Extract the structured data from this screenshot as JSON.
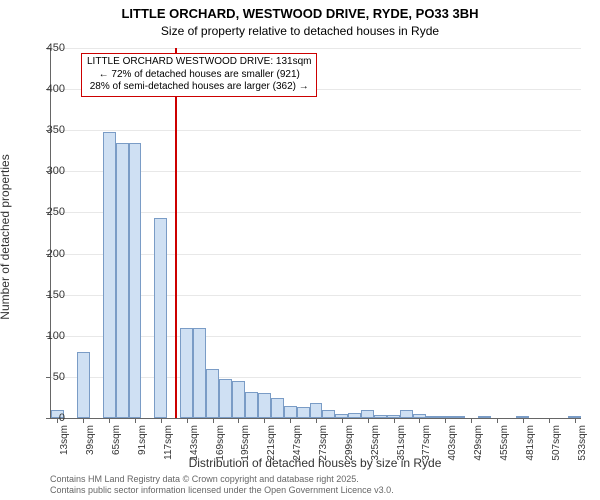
{
  "chart": {
    "type": "histogram",
    "title_line1": "LITTLE ORCHARD, WESTWOOD DRIVE, RYDE, PO33 3BH",
    "title_line2": "Size of property relative to detached houses in Ryde",
    "ylabel": "Number of detached properties",
    "xlabel": "Distribution of detached houses by size in Ryde",
    "ylim": [
      0,
      450
    ],
    "ytick_step": 50,
    "bar_fill": "#cfe0f3",
    "bar_stroke": "#7a9cc6",
    "background_color": "#ffffff",
    "grid_color": "#e8e8e8",
    "bar_width_ratio": 1.0,
    "x_ticks": [
      "13sqm",
      "39sqm",
      "65sqm",
      "91sqm",
      "117sqm",
      "143sqm",
      "169sqm",
      "195sqm",
      "221sqm",
      "247sqm",
      "273sqm",
      "299sqm",
      "325sqm",
      "351sqm",
      "377sqm",
      "403sqm",
      "429sqm",
      "455sqm",
      "481sqm",
      "507sqm",
      "533sqm"
    ],
    "bars": [
      {
        "x": "13",
        "v": 10
      },
      {
        "x": "26",
        "v": 0
      },
      {
        "x": "39",
        "v": 80
      },
      {
        "x": "52",
        "v": 0
      },
      {
        "x": "65",
        "v": 348
      },
      {
        "x": "78",
        "v": 335
      },
      {
        "x": "91",
        "v": 335
      },
      {
        "x": "104",
        "v": 0
      },
      {
        "x": "117",
        "v": 243
      },
      {
        "x": "130",
        "v": 0
      },
      {
        "x": "143",
        "v": 110
      },
      {
        "x": "156",
        "v": 110
      },
      {
        "x": "169",
        "v": 60
      },
      {
        "x": "182",
        "v": 48
      },
      {
        "x": "195",
        "v": 45
      },
      {
        "x": "208",
        "v": 32
      },
      {
        "x": "221",
        "v": 30
      },
      {
        "x": "234",
        "v": 24
      },
      {
        "x": "247",
        "v": 15
      },
      {
        "x": "260",
        "v": 14
      },
      {
        "x": "273",
        "v": 18
      },
      {
        "x": "286",
        "v": 10
      },
      {
        "x": "299",
        "v": 5
      },
      {
        "x": "312",
        "v": 6
      },
      {
        "x": "325",
        "v": 10
      },
      {
        "x": "338",
        "v": 4
      },
      {
        "x": "351",
        "v": 4
      },
      {
        "x": "364",
        "v": 10
      },
      {
        "x": "377",
        "v": 5
      },
      {
        "x": "390",
        "v": 3
      },
      {
        "x": "403",
        "v": 3
      },
      {
        "x": "416",
        "v": 2
      },
      {
        "x": "429",
        "v": 0
      },
      {
        "x": "442",
        "v": 2
      },
      {
        "x": "455",
        "v": 0
      },
      {
        "x": "468",
        "v": 0
      },
      {
        "x": "481",
        "v": 2
      },
      {
        "x": "494",
        "v": 0
      },
      {
        "x": "507",
        "v": 0
      },
      {
        "x": "520",
        "v": 0
      },
      {
        "x": "533",
        "v": 2
      }
    ],
    "marker_position_sqm": 131,
    "marker_color": "#cc0000",
    "annotation": {
      "line1": "LITTLE ORCHARD WESTWOOD DRIVE: 131sqm",
      "line2": "← 72% of detached houses are smaller (921)",
      "line3": "28% of semi-detached houses are larger (362) →",
      "border_color": "#cc0000",
      "fontsize": 10
    },
    "footer_line1": "Contains HM Land Registry data © Crown copyright and database right 2025.",
    "footer_line2": "Contains public sector information licensed under the Open Government Licence v3.0.",
    "title_fontsize": 13,
    "label_fontsize": 12,
    "tick_fontsize": 11
  }
}
